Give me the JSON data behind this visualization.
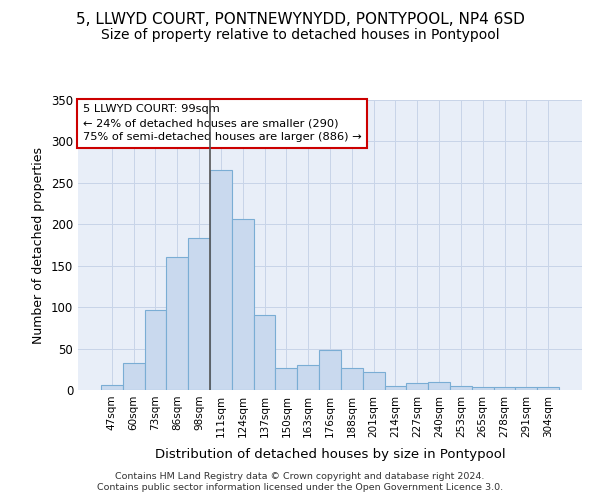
{
  "title1": "5, LLWYD COURT, PONTNEWYNYDD, PONTYPOOL, NP4 6SD",
  "title2": "Size of property relative to detached houses in Pontypool",
  "xlabel": "Distribution of detached houses by size in Pontypool",
  "ylabel": "Number of detached properties",
  "categories": [
    "47sqm",
    "60sqm",
    "73sqm",
    "86sqm",
    "98sqm",
    "111sqm",
    "124sqm",
    "137sqm",
    "150sqm",
    "163sqm",
    "176sqm",
    "188sqm",
    "201sqm",
    "214sqm",
    "227sqm",
    "240sqm",
    "253sqm",
    "265sqm",
    "278sqm",
    "291sqm",
    "304sqm"
  ],
  "values": [
    6,
    33,
    96,
    160,
    183,
    265,
    206,
    90,
    27,
    30,
    48,
    27,
    22,
    5,
    9,
    10,
    5,
    4,
    4,
    4,
    4
  ],
  "bar_color": "#c9d9ee",
  "bar_edge_color": "#7aadd4",
  "vline_x": 4.5,
  "vline_color": "#555555",
  "annotation_line1": "5 LLWYD COURT: 99sqm",
  "annotation_line2": "← 24% of detached houses are smaller (290)",
  "annotation_line3": "75% of semi-detached houses are larger (886) →",
  "annotation_box_color": "white",
  "annotation_box_edge_color": "#cc0000",
  "ylim": [
    0,
    350
  ],
  "yticks": [
    0,
    50,
    100,
    150,
    200,
    250,
    300,
    350
  ],
  "grid_color": "#c8d4e8",
  "bg_color": "#e8eef8",
  "footer1": "Contains HM Land Registry data © Crown copyright and database right 2024.",
  "footer2": "Contains public sector information licensed under the Open Government Licence 3.0.",
  "title1_fontsize": 11,
  "title2_fontsize": 10,
  "xlabel_fontsize": 9.5,
  "ylabel_fontsize": 9
}
